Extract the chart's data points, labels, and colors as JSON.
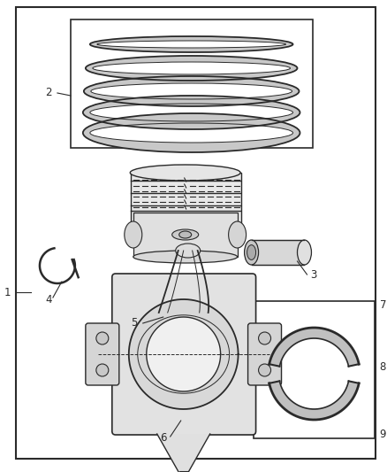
{
  "bg_color": "#ffffff",
  "lc": "#2a2a2a",
  "label_fontsize": 8.5,
  "fig_w": 4.38,
  "fig_h": 5.33
}
